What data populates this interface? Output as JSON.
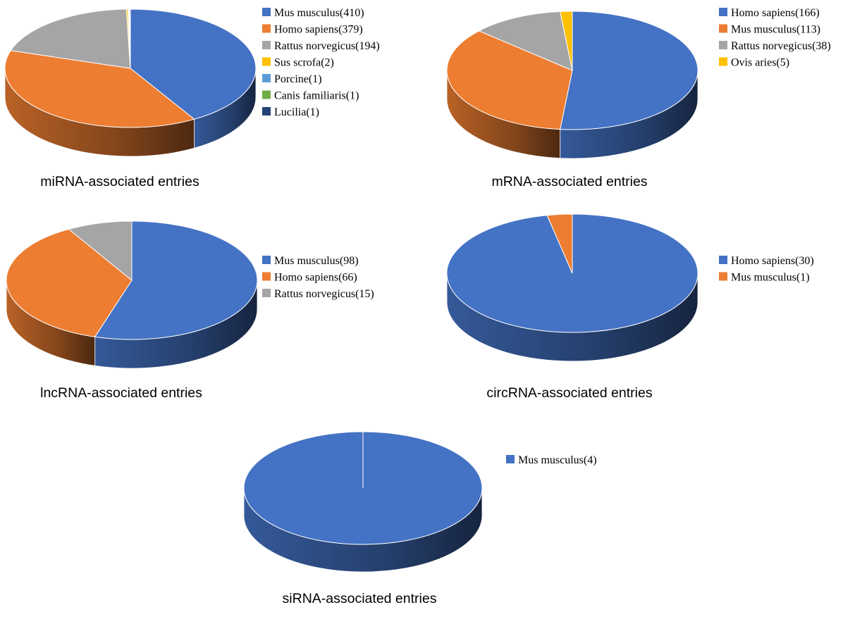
{
  "chart_data": [
    {
      "type": "pie",
      "title": "miRNA-associated entries",
      "series": [
        {
          "labels": [
            "Mus musculus(410)",
            "Homo sapiens(379)",
            "Rattus norvegicus(194)",
            "Sus scrofa(2)",
            "Porcine(1)",
            "Canis familiaris(1)",
            "Lucilia(1)"
          ],
          "values": [
            410,
            379,
            194,
            2,
            1,
            1,
            1
          ]
        }
      ],
      "colors": [
        "#4472C4",
        "#ED7D31",
        "#A5A5A5",
        "#FFC000",
        "#5B9BD5",
        "#70AD47",
        "#264478"
      ],
      "legend": "right"
    },
    {
      "type": "pie",
      "title": "mRNA-associated entries",
      "series": [
        {
          "labels": [
            "Homo sapiens(166)",
            "Mus musculus(113)",
            "Rattus norvegicus(38)",
            "Ovis aries(5)"
          ],
          "values": [
            166,
            113,
            38,
            5
          ]
        }
      ],
      "colors": [
        "#4472C4",
        "#ED7D31",
        "#A5A5A5",
        "#FFC000"
      ],
      "legend": "right"
    },
    {
      "type": "pie",
      "title": "lncRNA-associated entries",
      "series": [
        {
          "labels": [
            "Mus musculus(98)",
            "Homo sapiens(66)",
            "Rattus norvegicus(15)"
          ],
          "values": [
            98,
            66,
            15
          ]
        }
      ],
      "colors": [
        "#4472C4",
        "#ED7D31",
        "#A5A5A5"
      ],
      "legend": "right"
    },
    {
      "type": "pie",
      "title": "circRNA-associated entries",
      "series": [
        {
          "labels": [
            "Homo sapiens(30)",
            "Mus musculus(1)"
          ],
          "values": [
            30,
            1
          ]
        }
      ],
      "colors": [
        "#4472C4",
        "#ED7D31"
      ],
      "legend": "right"
    },
    {
      "type": "pie",
      "title": "siRNA-associated entries",
      "series": [
        {
          "labels": [
            "Mus musculus(4)"
          ],
          "values": [
            4
          ]
        }
      ],
      "colors": [
        "#4472C4"
      ],
      "legend": "right"
    }
  ]
}
